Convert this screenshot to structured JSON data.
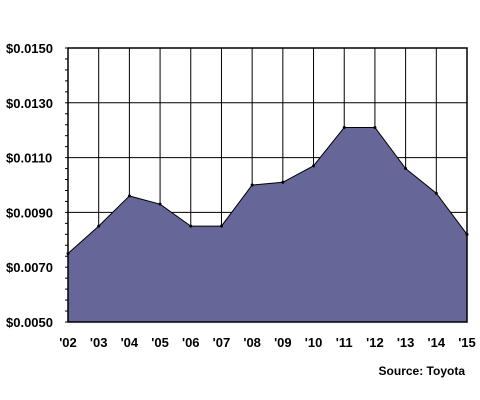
{
  "chart_data": {
    "type": "area",
    "title": "",
    "xlabel": "",
    "ylabel": "",
    "x": [
      "'02",
      "'03",
      "'04",
      "'05",
      "'06",
      "'07",
      "'08",
      "'09",
      "'10",
      "'11",
      "'12",
      "'13",
      "'14",
      "'15"
    ],
    "series": [
      {
        "values": [
          0.0075,
          0.0085,
          0.0096,
          0.0093,
          0.0085,
          0.0085,
          0.01,
          0.0101,
          0.0107,
          0.0121,
          0.0121,
          0.0106,
          0.0097,
          0.0082
        ]
      }
    ],
    "ylim": [
      0.005,
      0.015
    ],
    "y_ticks": [
      "$0.0050",
      "$0.0070",
      "$0.0090",
      "$0.0110",
      "$0.0130",
      "$0.0150"
    ],
    "grid": true,
    "source": "Source: Toyota",
    "colors": {
      "area_fill": "#666699",
      "area_stroke": "#000000",
      "grid": "#000000",
      "background": "#ffffff"
    }
  }
}
